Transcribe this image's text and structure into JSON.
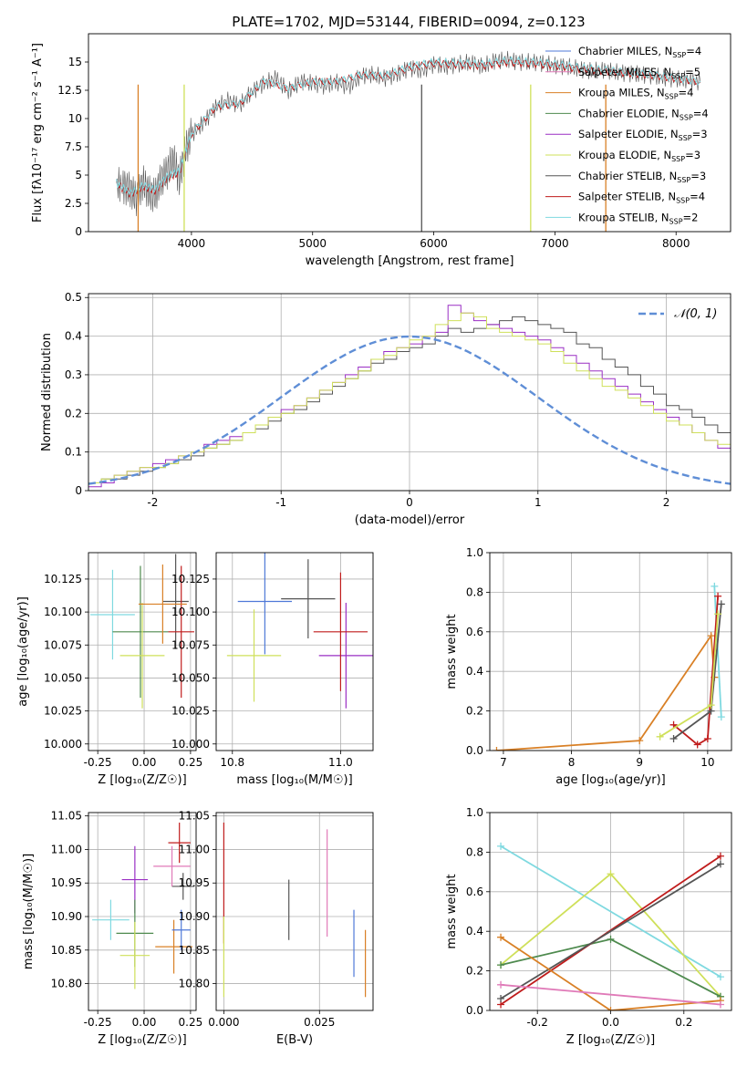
{
  "figure": {
    "title": "PLATE=1702, MJD=53144, FIBERID=0094, z=0.123"
  },
  "colors": {
    "Chabrier MILES": "#4f79d8",
    "Salpeter MILES": "#e07ab8",
    "Kroupa MILES": "#d98026",
    "Chabrier ELODIE": "#4e8a4e",
    "Salpeter ELODIE": "#9a2fc4",
    "Kroupa ELODIE": "#cfe05a",
    "Chabrier STELIB": "#555555",
    "Salpeter STELIB": "#c01c1c",
    "Kroupa STELIB": "#7fd9e0",
    "gaussian": "#5f8ed6"
  },
  "chart_data": [
    {
      "id": "spectrum",
      "type": "line",
      "title": "PLATE=1702, MJD=53144, FIBERID=0094, z=0.123",
      "xlabel": "wavelength [Angstrom, rest frame]",
      "ylabel": "Flux [fλ10⁻¹⁷ erg cm⁻² s⁻¹ A⁻¹]",
      "xlim": [
        3150,
        8450
      ],
      "ylim": [
        0,
        17.5
      ],
      "xticks": [
        4000,
        5000,
        6000,
        7000,
        8000
      ],
      "yticks": [
        0.0,
        2.5,
        5.0,
        7.5,
        10.0,
        12.5,
        15.0
      ],
      "legend_position": "right",
      "legend": [
        {
          "label": "Chabrier MILES, N",
          "sub": "SSP",
          "suffix": "=4"
        },
        {
          "label": "Salpeter MILES, N",
          "sub": "SSP",
          "suffix": "=5"
        },
        {
          "label": "Kroupa MILES, N",
          "sub": "SSP",
          "suffix": "=4"
        },
        {
          "label": "Chabrier ELODIE, N",
          "sub": "SSP",
          "suffix": "=4"
        },
        {
          "label": "Salpeter ELODIE, N",
          "sub": "SSP",
          "suffix": "=3"
        },
        {
          "label": "Kroupa ELODIE, N",
          "sub": "SSP",
          "suffix": "=3"
        },
        {
          "label": "Chabrier STELIB, N",
          "sub": "SSP",
          "suffix": "=3"
        },
        {
          "label": "Salpeter STELIB, N",
          "sub": "SSP",
          "suffix": "=4"
        },
        {
          "label": "Kroupa STELIB, N",
          "sub": "SSP",
          "suffix": "=2"
        }
      ],
      "series": [
        {
          "name": "Chabrier STELIB",
          "x": [
            3380,
            3450,
            3500,
            3550,
            3600,
            3650,
            3700,
            3750,
            3800,
            3850,
            3900,
            3950,
            4000,
            4100,
            4200,
            4300,
            4400,
            4500,
            4600,
            4700,
            4800,
            4900,
            5000,
            5100,
            5200,
            5300,
            5400,
            5500,
            5600,
            5700,
            5800,
            5900,
            6000,
            6100,
            6200,
            6300,
            6400,
            6500,
            6600,
            6700,
            6800,
            6900,
            7000,
            7100,
            7200,
            7300,
            7400,
            7500,
            7600,
            7700,
            7800,
            7900,
            8000,
            8100,
            8200
          ],
          "y": [
            4.2,
            4.0,
            3.6,
            2.9,
            4.4,
            3.4,
            3.2,
            4.6,
            5.3,
            6.5,
            4.6,
            7.2,
            8.6,
            9.6,
            11.0,
            11.6,
            11.2,
            12.4,
            13.1,
            13.6,
            12.4,
            13.3,
            13.1,
            12.9,
            13.2,
            12.8,
            13.8,
            13.9,
            13.6,
            13.9,
            14.5,
            14.2,
            14.8,
            14.6,
            14.8,
            15.0,
            14.6,
            15.1,
            15.2,
            15.0,
            15.0,
            14.9,
            14.7,
            14.6,
            14.4,
            14.2,
            14.3,
            14.1,
            14.0,
            13.9,
            13.8,
            13.6,
            13.5,
            13.4,
            13.2
          ]
        },
        {
          "name": "Salpeter STELIB",
          "x": [
            3380,
            3500,
            3600,
            3700,
            3800,
            3900,
            4000,
            4200,
            4400,
            4600,
            4800,
            5000,
            5200,
            5400,
            5600,
            5800,
            6000,
            6200,
            6400,
            6600,
            6800,
            7000,
            7200,
            7400,
            7600,
            7800,
            8000,
            8200
          ],
          "y": [
            4.2,
            3.3,
            4.0,
            3.6,
            4.8,
            5.2,
            8.6,
            11.0,
            11.3,
            13.3,
            12.6,
            13.2,
            13.2,
            13.8,
            13.7,
            14.5,
            14.9,
            14.8,
            14.7,
            15.0,
            14.9,
            14.7,
            14.4,
            14.2,
            14.0,
            13.8,
            13.5,
            13.2
          ]
        },
        {
          "name": "Kroupa STELIB",
          "x": [
            3380,
            3500,
            3600,
            3700,
            3800,
            3900,
            4000,
            4200,
            4400,
            4600,
            4800,
            5000,
            5200,
            5400,
            5600,
            5800,
            6000,
            6200,
            6400,
            6600,
            6800,
            7000,
            7200,
            7400,
            7600,
            7800,
            8000,
            8200
          ],
          "y": [
            4.3,
            3.4,
            4.1,
            3.7,
            4.9,
            5.4,
            8.7,
            11.1,
            11.4,
            13.4,
            12.7,
            13.3,
            13.3,
            13.9,
            13.8,
            14.6,
            15.0,
            14.9,
            14.8,
            15.1,
            15.0,
            14.8,
            14.5,
            14.3,
            14.1,
            13.9,
            13.6,
            13.3
          ]
        }
      ]
    },
    {
      "id": "residual-histogram",
      "type": "bar",
      "xlabel": "(data-model)/error",
      "ylabel": "Normed distribution",
      "xlim": [
        -2.5,
        2.5
      ],
      "ylim": [
        0,
        0.51
      ],
      "xticks": [
        -2,
        -1,
        0,
        1,
        2
      ],
      "yticks": [
        0.0,
        0.1,
        0.2,
        0.3,
        0.4,
        0.5
      ],
      "legend_position": "top-right",
      "gaussian_label": "𝒩(0, 1)",
      "bin_edges_start": -2.5,
      "bin_width": 0.1,
      "series": [
        {
          "name": "Chabrier STELIB",
          "values": [
            0.02,
            0.03,
            0.03,
            0.04,
            0.05,
            0.06,
            0.07,
            0.08,
            0.09,
            0.11,
            0.12,
            0.13,
            0.15,
            0.16,
            0.18,
            0.2,
            0.21,
            0.23,
            0.25,
            0.27,
            0.29,
            0.31,
            0.33,
            0.34,
            0.36,
            0.37,
            0.38,
            0.4,
            0.42,
            0.41,
            0.42,
            0.43,
            0.44,
            0.45,
            0.44,
            0.43,
            0.42,
            0.41,
            0.38,
            0.37,
            0.34,
            0.32,
            0.3,
            0.27,
            0.25,
            0.22,
            0.21,
            0.19,
            0.17,
            0.15
          ]
        },
        {
          "name": "Salpeter ELODIE",
          "values": [
            0.01,
            0.02,
            0.04,
            0.05,
            0.06,
            0.07,
            0.08,
            0.09,
            0.1,
            0.12,
            0.13,
            0.14,
            0.15,
            0.17,
            0.19,
            0.21,
            0.22,
            0.24,
            0.26,
            0.28,
            0.3,
            0.32,
            0.34,
            0.36,
            0.37,
            0.38,
            0.4,
            0.41,
            0.48,
            0.46,
            0.44,
            0.43,
            0.42,
            0.41,
            0.4,
            0.39,
            0.37,
            0.35,
            0.33,
            0.31,
            0.29,
            0.27,
            0.25,
            0.23,
            0.21,
            0.19,
            0.17,
            0.15,
            0.13,
            0.11
          ]
        },
        {
          "name": "Kroupa ELODIE",
          "values": [
            0.02,
            0.03,
            0.04,
            0.05,
            0.06,
            0.06,
            0.07,
            0.09,
            0.1,
            0.11,
            0.12,
            0.13,
            0.15,
            0.17,
            0.19,
            0.2,
            0.22,
            0.24,
            0.26,
            0.28,
            0.29,
            0.31,
            0.34,
            0.35,
            0.37,
            0.39,
            0.4,
            0.43,
            0.44,
            0.46,
            0.45,
            0.42,
            0.41,
            0.4,
            0.39,
            0.38,
            0.36,
            0.33,
            0.31,
            0.29,
            0.27,
            0.26,
            0.24,
            0.22,
            0.2,
            0.18,
            0.17,
            0.15,
            0.13,
            0.12
          ]
        }
      ]
    },
    {
      "id": "age-vs-Z",
      "type": "scatter",
      "xlabel": "Z [log₁₀(Z/Z☉)]",
      "ylabel": "age  [log₁₀(age/yr)]",
      "xlim": [
        -0.3,
        0.28
      ],
      "ylim": [
        9.995,
        10.145
      ],
      "xticks": [
        "-0.25",
        "0.00",
        "0.25"
      ],
      "yticks": [
        "10.000",
        "10.025",
        "10.050",
        "10.075",
        "10.100",
        "10.125"
      ],
      "points": [
        {
          "series": "Kroupa STELIB",
          "x": -0.17,
          "y": 10.098,
          "xerr": 0.12,
          "yerr": 0.034
        },
        {
          "series": "Chabrier ELODIE",
          "x": -0.02,
          "y": 10.085,
          "xerr": 0.15,
          "yerr": 0.05
        },
        {
          "series": "Kroupa ELODIE",
          "x": -0.01,
          "y": 10.067,
          "xerr": 0.12,
          "yerr": 0.04
        },
        {
          "series": "Chabrier STELIB",
          "x": 0.17,
          "y": 10.108,
          "xerr": 0.07,
          "yerr": 0.036
        },
        {
          "series": "Salpeter STELIB",
          "x": 0.2,
          "y": 10.085,
          "xerr": 0.07,
          "yerr": 0.05
        },
        {
          "series": "Kroupa MILES",
          "x": 0.1,
          "y": 10.106,
          "xerr": 0.13,
          "yerr": 0.03
        }
      ]
    },
    {
      "id": "age-vs-mass",
      "type": "scatter",
      "xlabel": "mass [log₁₀(M/M☉)]",
      "xlim": [
        10.77,
        11.06
      ],
      "ylim": [
        9.995,
        10.145
      ],
      "xticks": [
        "10.8",
        "11.0"
      ],
      "yticks": [
        "10.000",
        "10.025",
        "10.050",
        "10.075",
        "10.100",
        "10.125"
      ],
      "points": [
        {
          "series": "Chabrier MILES",
          "x": 10.86,
          "y": 10.108,
          "xerr": 0.05,
          "yerr": 0.04
        },
        {
          "series": "Kroupa ELODIE",
          "x": 10.84,
          "y": 10.067,
          "xerr": 0.05,
          "yerr": 0.035
        },
        {
          "series": "Salpeter ELODIE",
          "x": 11.01,
          "y": 10.067,
          "xerr": 0.05,
          "yerr": 0.04
        },
        {
          "series": "Salpeter STELIB",
          "x": 11.0,
          "y": 10.085,
          "xerr": 0.05,
          "yerr": 0.045
        },
        {
          "series": "Chabrier STELIB",
          "x": 10.94,
          "y": 10.11,
          "xerr": 0.05,
          "yerr": 0.03
        }
      ]
    },
    {
      "id": "massweight-vs-age",
      "type": "line",
      "xlabel": "age  [log₁₀(age/yr)]",
      "ylabel": "mass weight",
      "xlim": [
        6.8,
        10.35
      ],
      "ylim": [
        0,
        1.0
      ],
      "xticks": [
        7,
        8,
        9,
        10
      ],
      "yticks": [
        "0.0",
        "0.2",
        "0.4",
        "0.6",
        "0.8",
        "1.0"
      ],
      "series": [
        {
          "name": "Kroupa MILES",
          "x": [
            6.9,
            9.0,
            10.05,
            10.1
          ],
          "y": [
            0.0,
            0.05,
            0.58,
            0.37
          ]
        },
        {
          "name": "Kroupa STELIB",
          "x": [
            10.1,
            10.2
          ],
          "y": [
            0.83,
            0.17
          ]
        },
        {
          "name": "Salpeter STELIB",
          "x": [
            9.5,
            9.85,
            10.0,
            10.15
          ],
          "y": [
            0.13,
            0.03,
            0.06,
            0.78
          ]
        },
        {
          "name": "Chabrier STELIB",
          "x": [
            9.5,
            10.05,
            10.2
          ],
          "y": [
            0.06,
            0.2,
            0.74
          ]
        },
        {
          "name": "Kroupa ELODIE",
          "x": [
            9.3,
            10.05,
            10.15
          ],
          "y": [
            0.07,
            0.23,
            0.69
          ]
        }
      ]
    },
    {
      "id": "mass-vs-Z",
      "type": "scatter",
      "xlabel": "Z [log₁₀(Z/Z☉)]",
      "ylabel": "mass [log₁₀(M/M☉)]",
      "xlim": [
        -0.3,
        0.28
      ],
      "ylim": [
        10.76,
        11.055
      ],
      "xticks": [
        "-0.25",
        "0.00",
        "0.25"
      ],
      "yticks": [
        "10.80",
        "10.85",
        "10.90",
        "10.95",
        "11.00",
        "11.05"
      ],
      "points": [
        {
          "series": "Kroupa STELIB",
          "x": -0.18,
          "y": 10.895,
          "xerr": 0.1,
          "yerr": 0.03
        },
        {
          "series": "Salpeter ELODIE",
          "x": -0.05,
          "y": 10.955,
          "xerr": 0.07,
          "yerr": 0.05
        },
        {
          "series": "Chabrier ELODIE",
          "x": -0.05,
          "y": 10.875,
          "xerr": 0.1,
          "yerr": 0.05
        },
        {
          "series": "Kroupa ELODIE",
          "x": -0.05,
          "y": 10.842,
          "xerr": 0.08,
          "yerr": 0.05
        },
        {
          "series": "Salpeter STELIB",
          "x": 0.19,
          "y": 11.01,
          "xerr": 0.06,
          "yerr": 0.03
        },
        {
          "series": "Chabrier STELIB",
          "x": 0.21,
          "y": 10.945,
          "xerr": 0.06,
          "yerr": 0.02
        },
        {
          "series": "Kroupa MILES",
          "x": 0.16,
          "y": 10.855,
          "xerr": 0.1,
          "yerr": 0.04
        },
        {
          "series": "Salpeter MILES",
          "x": 0.15,
          "y": 10.975,
          "xerr": 0.1,
          "yerr": 0.03
        },
        {
          "series": "Chabrier MILES",
          "x": 0.2,
          "y": 10.88,
          "xerr": 0.05,
          "yerr": 0.03
        }
      ]
    },
    {
      "id": "mass-vs-ebv",
      "type": "scatter",
      "xlabel": "E(B-V)",
      "xlim": [
        -0.002,
        0.039
      ],
      "ylim": [
        10.76,
        11.055
      ],
      "xticks": [
        "0.000",
        "0.025"
      ],
      "yticks": [
        "10.80",
        "10.85",
        "10.90",
        "10.95",
        "11.00",
        "11.05"
      ],
      "points": [
        {
          "series": "Salpeter STELIB",
          "x": 0.0,
          "y": 10.95,
          "yerr": 0.09
        },
        {
          "series": "Kroupa ELODIE",
          "x": 0.0,
          "y": 10.84,
          "yerr": 0.06
        },
        {
          "series": "Chabrier STELIB",
          "x": 0.017,
          "y": 10.91,
          "yerr": 0.045
        },
        {
          "series": "Salpeter MILES",
          "x": 0.027,
          "y": 10.95,
          "yerr": 0.08
        },
        {
          "series": "Chabrier MILES",
          "x": 0.034,
          "y": 10.86,
          "yerr": 0.05
        },
        {
          "series": "Kroupa MILES",
          "x": 0.037,
          "y": 10.83,
          "yerr": 0.05
        }
      ]
    },
    {
      "id": "massweight-vs-Z",
      "type": "line",
      "xlabel": "Z [log₁₀(Z/Z☉)]",
      "ylabel": "mass weight",
      "xlim": [
        -0.33,
        0.33
      ],
      "ylim": [
        0,
        1.0
      ],
      "xticks": [
        "-0.2",
        "0.0",
        "0.2"
      ],
      "yticks": [
        "0.0",
        "0.2",
        "0.4",
        "0.6",
        "0.8",
        "1.0"
      ],
      "series": [
        {
          "name": "Kroupa STELIB",
          "x": [
            -0.3,
            0.3
          ],
          "y": [
            0.83,
            0.17
          ]
        },
        {
          "name": "Kroupa ELODIE",
          "x": [
            -0.3,
            0.0,
            0.3
          ],
          "y": [
            0.23,
            0.69,
            0.07
          ]
        },
        {
          "name": "Chabrier ELODIE",
          "x": [
            -0.3,
            0.0,
            0.3
          ],
          "y": [
            0.23,
            0.36,
            0.07
          ]
        },
        {
          "name": "Salpeter STELIB",
          "x": [
            -0.3,
            0.3
          ],
          "y": [
            0.03,
            0.78
          ]
        },
        {
          "name": "Chabrier STELIB",
          "x": [
            -0.3,
            0.3
          ],
          "y": [
            0.06,
            0.74
          ]
        },
        {
          "name": "Kroupa MILES",
          "x": [
            -0.3,
            0.0,
            0.3
          ],
          "y": [
            0.37,
            0.0,
            0.05
          ]
        },
        {
          "name": "Salpeter MILES",
          "x": [
            -0.3,
            0.3
          ],
          "y": [
            0.13,
            0.03
          ]
        }
      ]
    }
  ]
}
